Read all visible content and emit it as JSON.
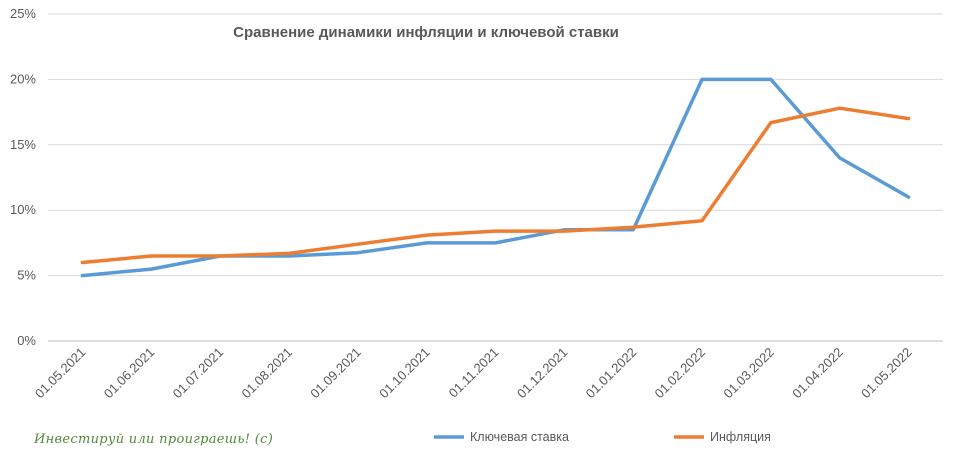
{
  "chart_data": {
    "type": "line",
    "title": "Сравнение динамики инфляции и ключевой ставки",
    "categories": [
      "01.05.2021",
      "01.06.2021",
      "01.07.2021",
      "01.08.2021",
      "01.09.2021",
      "01.10.2021",
      "01.11.2021",
      "01.12.2021",
      "01.01.2022",
      "01.02.2022",
      "01.03.2022",
      "01.04.2022",
      "01.05.2022"
    ],
    "y_ticks": [
      "0%",
      "5%",
      "10%",
      "15%",
      "20%",
      "25%"
    ],
    "ylim": [
      0,
      25
    ],
    "grid": "horizontal",
    "legend_position": "bottom",
    "series": [
      {
        "name": "Ключевая ставка",
        "color": "#5b9bd5",
        "values": [
          5.0,
          5.5,
          6.5,
          6.5,
          6.75,
          7.5,
          7.5,
          8.5,
          8.5,
          20.0,
          20.0,
          14.0,
          11.0
        ]
      },
      {
        "name": "Инфляция",
        "color": "#ed7d31",
        "values": [
          6.0,
          6.5,
          6.5,
          6.7,
          7.4,
          8.1,
          8.4,
          8.4,
          8.7,
          9.2,
          16.7,
          17.8,
          17.0
        ]
      }
    ]
  },
  "watermark": "Инвестируй или проиграешь! (с)"
}
